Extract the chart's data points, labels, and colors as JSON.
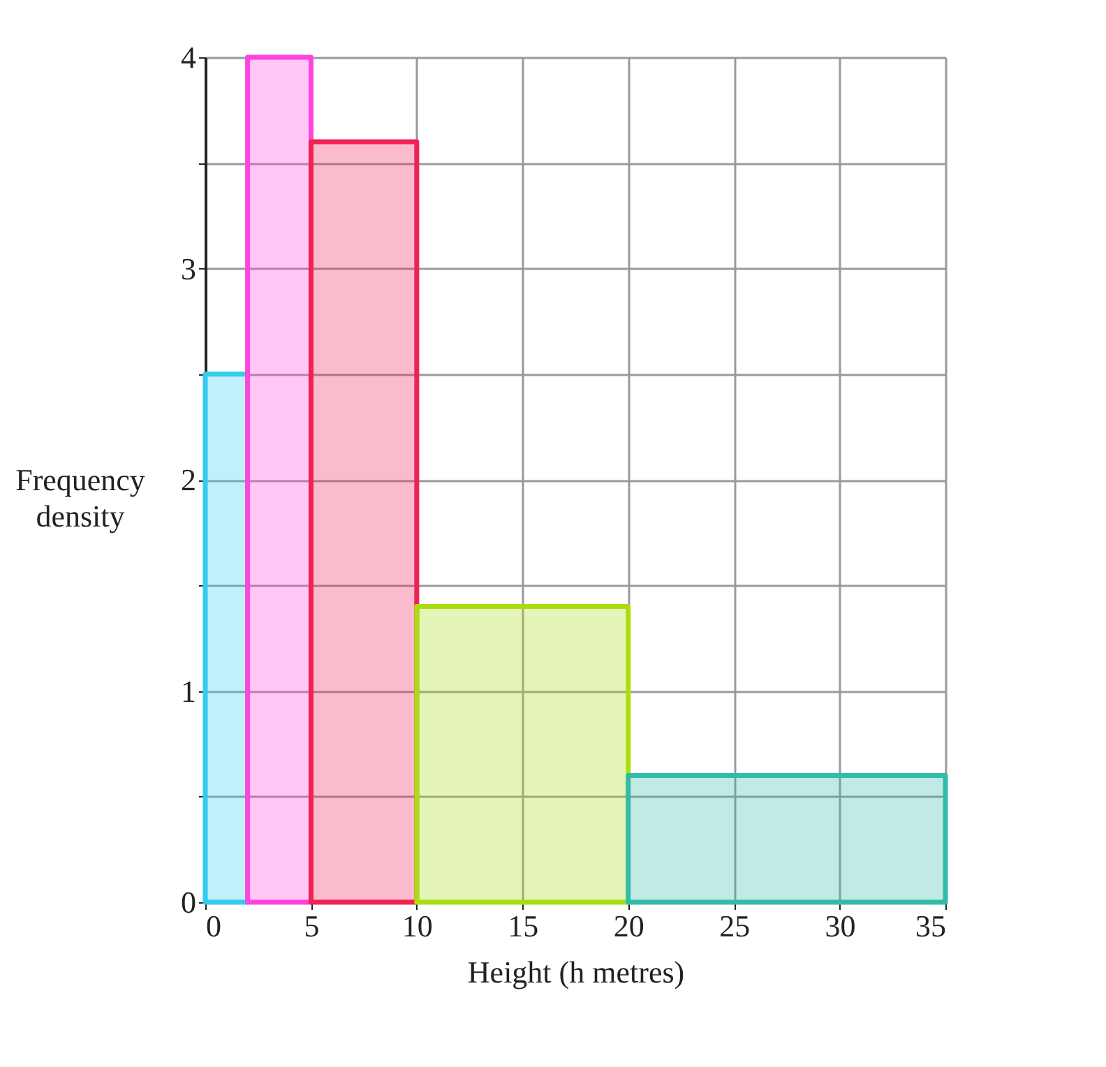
{
  "chart_data": {
    "type": "histogram",
    "xlabel": "Height (h metres)",
    "ylabel": "Frequency density",
    "bins": [
      0,
      2,
      5,
      10,
      20,
      35
    ],
    "values": [
      2.5,
      4,
      3.6,
      1.4,
      0.6
    ],
    "colors": [
      "#33ccee",
      "#ff44dd",
      "#ee2255",
      "#aadd11",
      "#33bbaa"
    ],
    "xlim": [
      0,
      35
    ],
    "ylim": [
      0,
      4
    ],
    "xticks": [
      0,
      5,
      10,
      15,
      20,
      25,
      30,
      35
    ],
    "yticks": [
      0,
      {
        "value": 0.5,
        "label": null
      },
      1,
      {
        "value": 1.5,
        "label": null
      },
      2,
      {
        "value": 2.5,
        "label": null
      },
      3,
      {
        "value": 3.5,
        "label": null
      },
      4
    ],
    "grid": true
  }
}
